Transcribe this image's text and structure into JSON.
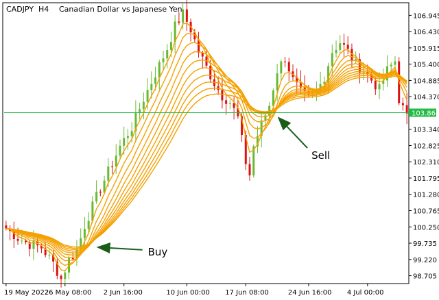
{
  "window": {
    "symbol": "CADJPY",
    "timeframe": "H4",
    "description": "Canadian Dollar vs Japanese Yen"
  },
  "colors": {
    "background": "#ffffff",
    "frame": "#000000",
    "bull": "#66bb33",
    "bear": "#dd1111",
    "ribbon": "#f5a000",
    "current_price_line": "#22bb44"
  },
  "chart_data": {
    "type": "candlestick",
    "x_tick_labels": [
      "19 May 2022",
      "26 May 08:00",
      "2 Jun 16:00",
      "10 Jun 00:00",
      "17 Jun 08:00",
      "24 Jun 16:00",
      "4 Jul 00:00"
    ],
    "y_tick_labels": [
      "106.945",
      "106.430",
      "105.915",
      "105.400",
      "104.885",
      "104.370",
      "103.340",
      "102.825",
      "102.310",
      "101.795",
      "101.280",
      "100.765",
      "100.250",
      "99.735",
      "99.220",
      "98.705"
    ],
    "ylim": [
      98.5,
      107.3
    ],
    "current_price": "103.864",
    "grid": false,
    "ribbon_lines": 10,
    "price_path": [
      [
        0,
        100.2
      ],
      [
        3,
        99.9
      ],
      [
        6,
        99.7
      ],
      [
        9,
        99.6
      ],
      [
        12,
        99.1
      ],
      [
        14,
        98.6
      ],
      [
        16,
        99.2
      ],
      [
        18,
        99.5
      ],
      [
        20,
        100.3
      ],
      [
        23,
        101.2
      ],
      [
        26,
        102.0
      ],
      [
        29,
        102.8
      ],
      [
        32,
        103.4
      ],
      [
        35,
        104.3
      ],
      [
        38,
        105.1
      ],
      [
        41,
        105.9
      ],
      [
        43,
        106.6
      ],
      [
        45,
        107.0
      ],
      [
        47,
        106.5
      ],
      [
        49,
        105.8
      ],
      [
        51,
        105.3
      ],
      [
        53,
        104.8
      ],
      [
        55,
        104.4
      ],
      [
        57,
        104.2
      ],
      [
        59,
        103.7
      ],
      [
        61,
        102.3
      ],
      [
        62,
        101.9
      ],
      [
        63,
        102.8
      ],
      [
        65,
        103.5
      ],
      [
        67,
        104.1
      ],
      [
        69,
        105.2
      ],
      [
        71,
        105.6
      ],
      [
        73,
        104.9
      ],
      [
        75,
        104.5
      ],
      [
        77,
        104.3
      ],
      [
        79,
        104.5
      ],
      [
        81,
        105.0
      ],
      [
        83,
        105.8
      ],
      [
        85,
        106.1
      ],
      [
        87,
        105.8
      ],
      [
        89,
        105.4
      ],
      [
        91,
        105.2
      ],
      [
        93,
        104.9
      ],
      [
        95,
        104.6
      ],
      [
        97,
        105.2
      ],
      [
        99,
        105.5
      ],
      [
        100,
        104.3
      ],
      [
        102,
        103.7
      ]
    ],
    "buy_marker_index": 21,
    "sell_marker_index": 68,
    "annotations": [
      {
        "text": "Buy",
        "label_price": 99.35,
        "target_index": 23,
        "target_price": 99.65
      },
      {
        "text": "Sell",
        "label_price": 102.4,
        "target_index": 69,
        "target_price": 103.75
      }
    ]
  }
}
